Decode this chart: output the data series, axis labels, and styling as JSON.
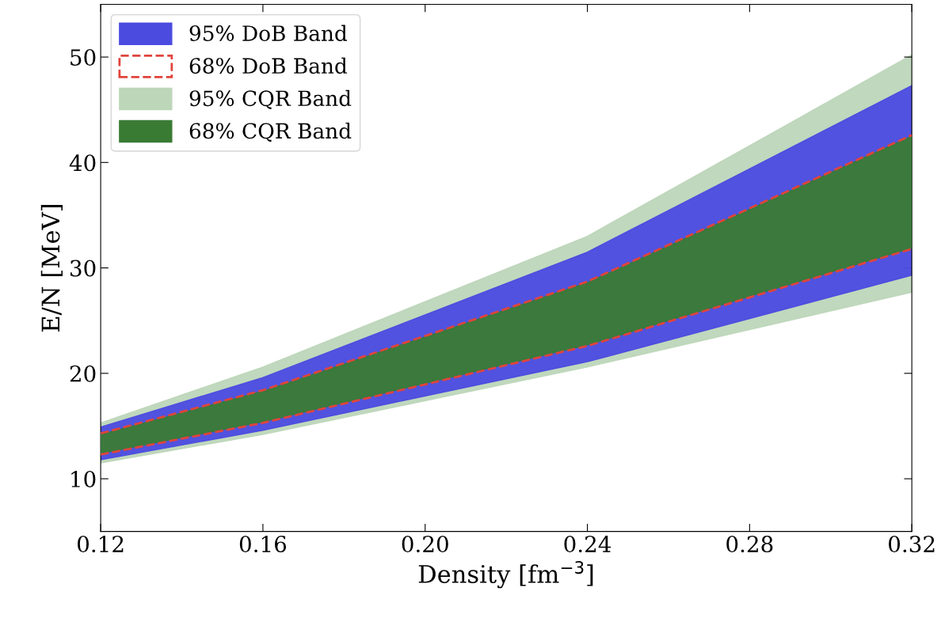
{
  "chart_data": {
    "type": "area",
    "xlabel": "Density [fm$^{−3}$]",
    "ylabel": "E/N [MeV]",
    "x": [
      0.12,
      0.16,
      0.24,
      0.32
    ],
    "series": [
      {
        "name": "95% DoB Band",
        "color": "#4b4be0",
        "values": [
          null,
          null,
          null,
          null
        ],
        "lower": [
          11.8,
          14.6,
          21.1,
          29.3
        ],
        "upper": [
          14.9,
          19.6,
          31.5,
          47.3
        ]
      },
      {
        "name": "68% DoB Band",
        "type": "line",
        "color": "#e0443c",
        "line_style": "dashed",
        "values": [
          14.3,
          18.4,
          28.7,
          42.6
        ]
      },
      {
        "name": "95% CQR Band",
        "color": "#bdd6b9",
        "values": [
          null,
          null,
          null,
          null
        ],
        "lower": [
          11.5,
          14.2,
          20.6,
          27.7
        ],
        "upper": [
          15.3,
          20.6,
          33.0,
          50.2
        ]
      },
      {
        "name": "68% CQR Band",
        "color": "#3a7b34",
        "values": [
          null,
          null,
          null,
          null
        ],
        "lower": [
          12.4,
          15.4,
          22.7,
          31.9
        ],
        "upper": [
          14.2,
          18.3,
          28.6,
          42.5
        ]
      },
      {
        "type": "line",
        "color": "#e0443c",
        "line_style": "dashed",
        "values": [
          12.3,
          15.3,
          22.6,
          31.8
        ]
      }
    ],
    "xlim": [
      0.12,
      0.32
    ],
    "xticks": [
      {
        "value": 0.12,
        "label": "0.12"
      },
      {
        "value": 0.16,
        "label": "0.16"
      },
      {
        "value": 0.2,
        "label": "0.20"
      },
      {
        "value": 0.24,
        "label": "0.24"
      },
      {
        "value": 0.28,
        "label": "0.28"
      },
      {
        "value": 0.32,
        "label": "0.32"
      }
    ],
    "ylim": [
      5,
      55
    ],
    "yticks": [
      10,
      20,
      30,
      40,
      50
    ],
    "legend": "top left",
    "grid": false
  }
}
